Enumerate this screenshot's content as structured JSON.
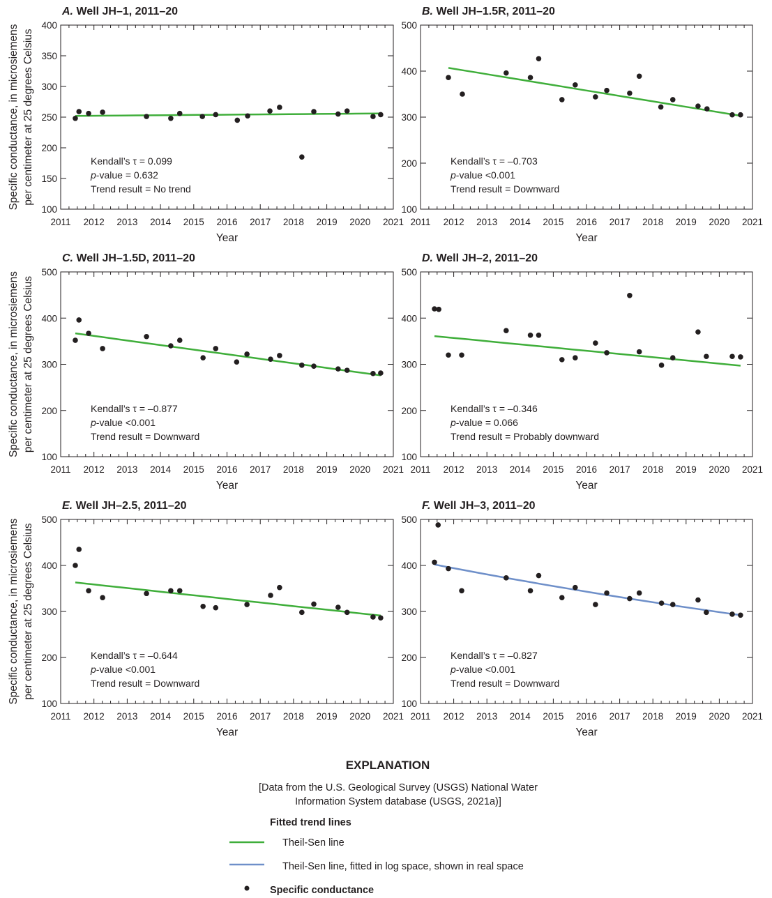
{
  "y_axis_label": [
    "Specific conductance, in microsiemens",
    "per centimeter at 25 degrees Celsius"
  ],
  "colors": {
    "theil_sen": "#3fae3a",
    "theil_sen_log": "#6e8fc9",
    "points": "#231f20"
  },
  "chart_data": [
    {
      "type": "scatter",
      "panel_letter": "A.",
      "title": "Well JH–1, 2011–20",
      "xlabel": "Year",
      "xlim": [
        2011,
        2021
      ],
      "ylim": [
        100,
        400
      ],
      "yticks": [
        100,
        150,
        200,
        250,
        300,
        350,
        400
      ],
      "xticks": [
        2011,
        2012,
        2013,
        2014,
        2015,
        2016,
        2017,
        2018,
        2019,
        2020,
        2021
      ],
      "stats": {
        "tau_label": "Kendall’s τ = 0.099",
        "p_prefix": "p",
        "p_label": "-value = 0.632",
        "trend_label": "Trend result = No trend"
      },
      "points": [
        [
          2011.44,
          248
        ],
        [
          2011.55,
          259
        ],
        [
          2011.84,
          256
        ],
        [
          2012.26,
          258
        ],
        [
          2013.58,
          251
        ],
        [
          2014.31,
          248
        ],
        [
          2014.58,
          256
        ],
        [
          2015.26,
          251
        ],
        [
          2015.66,
          254
        ],
        [
          2016.31,
          245
        ],
        [
          2016.62,
          252
        ],
        [
          2017.29,
          260
        ],
        [
          2017.58,
          266
        ],
        [
          2018.25,
          185
        ],
        [
          2018.61,
          259
        ],
        [
          2019.34,
          255
        ],
        [
          2019.61,
          260
        ],
        [
          2020.39,
          251
        ],
        [
          2020.62,
          254
        ]
      ],
      "trend": {
        "kind": "theil_sen",
        "from": [
          2011.44,
          252
        ],
        "to": [
          2020.62,
          256
        ]
      }
    },
    {
      "type": "scatter",
      "panel_letter": "B.",
      "title": "Well JH–1.5R, 2011–20",
      "xlabel": "Year",
      "xlim": [
        2011,
        2021
      ],
      "ylim": [
        100,
        500
      ],
      "yticks": [
        100,
        200,
        300,
        400,
        500
      ],
      "xticks": [
        2011,
        2012,
        2013,
        2014,
        2015,
        2016,
        2017,
        2018,
        2019,
        2020,
        2021
      ],
      "stats": {
        "tau_label": "Kendall’s τ = –0.703",
        "p_prefix": "p",
        "p_label": "-value <0.001",
        "trend_label": "Trend result = Downward"
      },
      "points": [
        [
          2011.84,
          386
        ],
        [
          2012.26,
          350
        ],
        [
          2013.58,
          396
        ],
        [
          2014.31,
          386
        ],
        [
          2014.56,
          427
        ],
        [
          2015.26,
          338
        ],
        [
          2015.66,
          370
        ],
        [
          2016.27,
          344
        ],
        [
          2016.61,
          358
        ],
        [
          2017.3,
          352
        ],
        [
          2017.59,
          389
        ],
        [
          2018.24,
          322
        ],
        [
          2018.6,
          338
        ],
        [
          2019.36,
          324
        ],
        [
          2019.63,
          318
        ],
        [
          2020.39,
          305
        ],
        [
          2020.64,
          305
        ]
      ],
      "trend": {
        "kind": "theil_sen",
        "from": [
          2011.84,
          407
        ],
        "to": [
          2020.64,
          303
        ]
      }
    },
    {
      "type": "scatter",
      "panel_letter": "C.",
      "title": "Well JH–1.5D, 2011–20",
      "xlabel": "Year",
      "xlim": [
        2011,
        2021
      ],
      "ylim": [
        100,
        500
      ],
      "yticks": [
        100,
        200,
        300,
        400,
        500
      ],
      "xticks": [
        2011,
        2012,
        2013,
        2014,
        2015,
        2016,
        2017,
        2018,
        2019,
        2020,
        2021
      ],
      "stats": {
        "tau_label": "Kendall’s τ = –0.877",
        "p_prefix": "p",
        "p_label": "-value <0.001",
        "trend_label": "Trend result = Downward"
      },
      "points": [
        [
          2011.44,
          352
        ],
        [
          2011.55,
          396
        ],
        [
          2011.84,
          367
        ],
        [
          2012.26,
          334
        ],
        [
          2013.58,
          360
        ],
        [
          2014.31,
          340
        ],
        [
          2014.58,
          352
        ],
        [
          2015.28,
          314
        ],
        [
          2015.66,
          334
        ],
        [
          2016.29,
          305
        ],
        [
          2016.6,
          322
        ],
        [
          2017.31,
          311
        ],
        [
          2017.58,
          319
        ],
        [
          2018.25,
          298
        ],
        [
          2018.61,
          296
        ],
        [
          2019.34,
          290
        ],
        [
          2019.61,
          287
        ],
        [
          2020.39,
          280
        ],
        [
          2020.62,
          281
        ]
      ],
      "trend": {
        "kind": "theil_sen",
        "from": [
          2011.44,
          367
        ],
        "to": [
          2020.62,
          276
        ]
      }
    },
    {
      "type": "scatter",
      "panel_letter": "D.",
      "title": "Well JH–2, 2011–20",
      "xlabel": "Year",
      "xlim": [
        2011,
        2021
      ],
      "ylim": [
        100,
        500
      ],
      "yticks": [
        100,
        200,
        300,
        400,
        500
      ],
      "xticks": [
        2011,
        2012,
        2013,
        2014,
        2015,
        2016,
        2017,
        2018,
        2019,
        2020,
        2021
      ],
      "stats": {
        "tau_label": "Kendall’s τ = –0.346",
        "p_prefix": "p",
        "p_label": "-value = 0.066",
        "trend_label": "Trend result = Probably downward"
      },
      "points": [
        [
          2011.42,
          420
        ],
        [
          2011.55,
          419
        ],
        [
          2011.84,
          320
        ],
        [
          2012.24,
          320
        ],
        [
          2013.58,
          373
        ],
        [
          2014.31,
          363
        ],
        [
          2014.56,
          363
        ],
        [
          2015.26,
          310
        ],
        [
          2015.66,
          314
        ],
        [
          2016.27,
          346
        ],
        [
          2016.61,
          325
        ],
        [
          2017.3,
          449
        ],
        [
          2017.59,
          327
        ],
        [
          2018.26,
          298
        ],
        [
          2018.6,
          314
        ],
        [
          2019.36,
          370
        ],
        [
          2019.61,
          317
        ],
        [
          2020.39,
          317
        ],
        [
          2020.64,
          316
        ]
      ],
      "trend": {
        "kind": "theil_sen",
        "from": [
          2011.42,
          361
        ],
        "to": [
          2020.64,
          297
        ]
      }
    },
    {
      "type": "scatter",
      "panel_letter": "E.",
      "title": "Well JH–2.5, 2011–20",
      "xlabel": "Year",
      "xlim": [
        2011,
        2021
      ],
      "ylim": [
        100,
        500
      ],
      "yticks": [
        100,
        200,
        300,
        400,
        500
      ],
      "xticks": [
        2011,
        2012,
        2013,
        2014,
        2015,
        2016,
        2017,
        2018,
        2019,
        2020,
        2021
      ],
      "stats": {
        "tau_label": "Kendall’s τ = –0.644",
        "p_prefix": "p",
        "p_label": "-value <0.001",
        "trend_label": "Trend result = Downward"
      },
      "points": [
        [
          2011.44,
          400
        ],
        [
          2011.55,
          435
        ],
        [
          2011.84,
          345
        ],
        [
          2012.26,
          330
        ],
        [
          2013.58,
          339
        ],
        [
          2014.31,
          345
        ],
        [
          2014.58,
          345
        ],
        [
          2015.28,
          311
        ],
        [
          2015.66,
          308
        ],
        [
          2016.6,
          315
        ],
        [
          2017.31,
          335
        ],
        [
          2017.58,
          352
        ],
        [
          2018.25,
          298
        ],
        [
          2018.61,
          316
        ],
        [
          2019.34,
          309
        ],
        [
          2019.61,
          298
        ],
        [
          2020.39,
          288
        ],
        [
          2020.62,
          286
        ]
      ],
      "trend": {
        "kind": "theil_sen",
        "from": [
          2011.44,
          363
        ],
        "to": [
          2020.62,
          291
        ]
      }
    },
    {
      "type": "scatter",
      "panel_letter": "F.",
      "title": "Well JH–3, 2011–20",
      "xlabel": "Year",
      "xlim": [
        2011,
        2021
      ],
      "ylim": [
        100,
        500
      ],
      "yticks": [
        100,
        200,
        300,
        400,
        500
      ],
      "xticks": [
        2011,
        2012,
        2013,
        2014,
        2015,
        2016,
        2017,
        2018,
        2019,
        2020,
        2021
      ],
      "stats": {
        "tau_label": "Kendall’s τ = –0.827",
        "p_prefix": "p",
        "p_label": "-value <0.001",
        "trend_label": "Trend result = Downward"
      },
      "points": [
        [
          2011.42,
          407
        ],
        [
          2011.53,
          488
        ],
        [
          2011.84,
          393
        ],
        [
          2012.24,
          345
        ],
        [
          2013.58,
          373
        ],
        [
          2014.31,
          345
        ],
        [
          2014.56,
          378
        ],
        [
          2015.26,
          330
        ],
        [
          2015.66,
          352
        ],
        [
          2016.27,
          315
        ],
        [
          2016.61,
          340
        ],
        [
          2017.3,
          328
        ],
        [
          2017.59,
          340
        ],
        [
          2018.26,
          318
        ],
        [
          2018.6,
          315
        ],
        [
          2019.36,
          325
        ],
        [
          2019.61,
          298
        ],
        [
          2020.39,
          294
        ],
        [
          2020.64,
          292
        ]
      ],
      "trend": {
        "kind": "theil_sen_log",
        "from": [
          2011.42,
          402
        ],
        "to": [
          2020.64,
          292
        ]
      }
    }
  ],
  "legend": {
    "heading": "EXPLANATION",
    "source_lines": [
      "[Data from the U.S. Geological Survey (USGS) National Water",
      "Information System database (USGS, 2021a)]"
    ],
    "group_title": "Fitted trend lines",
    "items": [
      {
        "kind": "theil_sen",
        "label": "Theil-Sen line"
      },
      {
        "kind": "theil_sen_log",
        "label": "Theil-Sen line, fitted in log space, shown in real space"
      }
    ],
    "points_label": "Specific conductance"
  }
}
